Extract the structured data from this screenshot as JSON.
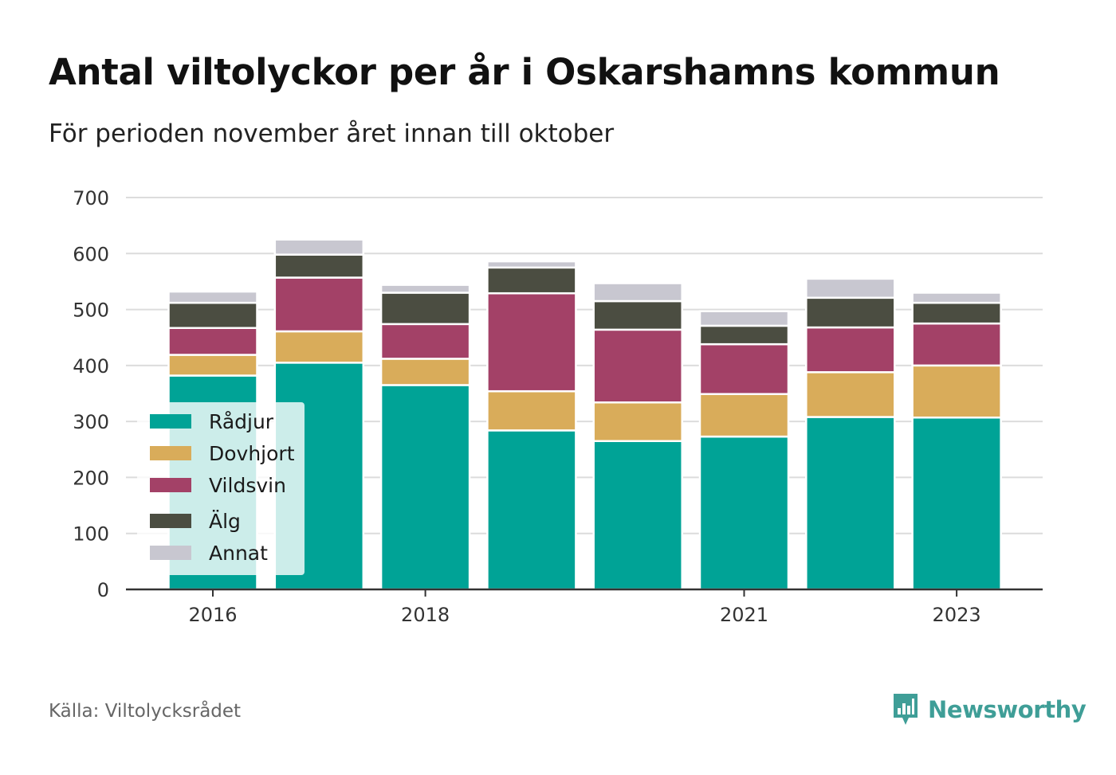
{
  "header": {
    "title": "Antal viltolyckor per år i Oskarshamns kommun",
    "subtitle": "För perioden november året innan till oktober"
  },
  "footer": {
    "source": "Källa: Viltolycksrådet",
    "brand": "Newsworthy"
  },
  "colors": {
    "Rådjur": "#00a396",
    "Dovhjort": "#d9ac5a",
    "Vildsvin": "#a34167",
    "Älg": "#4b4d41",
    "Annat": "#c8c7d0"
  },
  "chart_data": {
    "type": "bar",
    "stacked": true,
    "x": [
      2016,
      2017,
      2018,
      2019,
      2020,
      2021,
      2022,
      2023
    ],
    "x_tick_labels": [
      "2016",
      "2018",
      "2021",
      "2023"
    ],
    "y_ticks": [
      0,
      100,
      200,
      300,
      400,
      500,
      600,
      700
    ],
    "ylim": [
      0,
      700
    ],
    "grid": true,
    "legend_position": "inside-left",
    "series": [
      {
        "name": "Rådjur",
        "values": [
          382,
          405,
          365,
          284,
          265,
          273,
          308,
          307
        ]
      },
      {
        "name": "Dovhjort",
        "values": [
          37,
          56,
          47,
          70,
          69,
          76,
          80,
          93
        ]
      },
      {
        "name": "Vildsvin",
        "values": [
          48,
          96,
          62,
          175,
          130,
          89,
          80,
          75
        ]
      },
      {
        "name": "Älg",
        "values": [
          45,
          41,
          56,
          46,
          51,
          33,
          53,
          37
        ]
      },
      {
        "name": "Annat",
        "values": [
          20,
          27,
          14,
          11,
          32,
          26,
          34,
          18
        ]
      }
    ]
  }
}
